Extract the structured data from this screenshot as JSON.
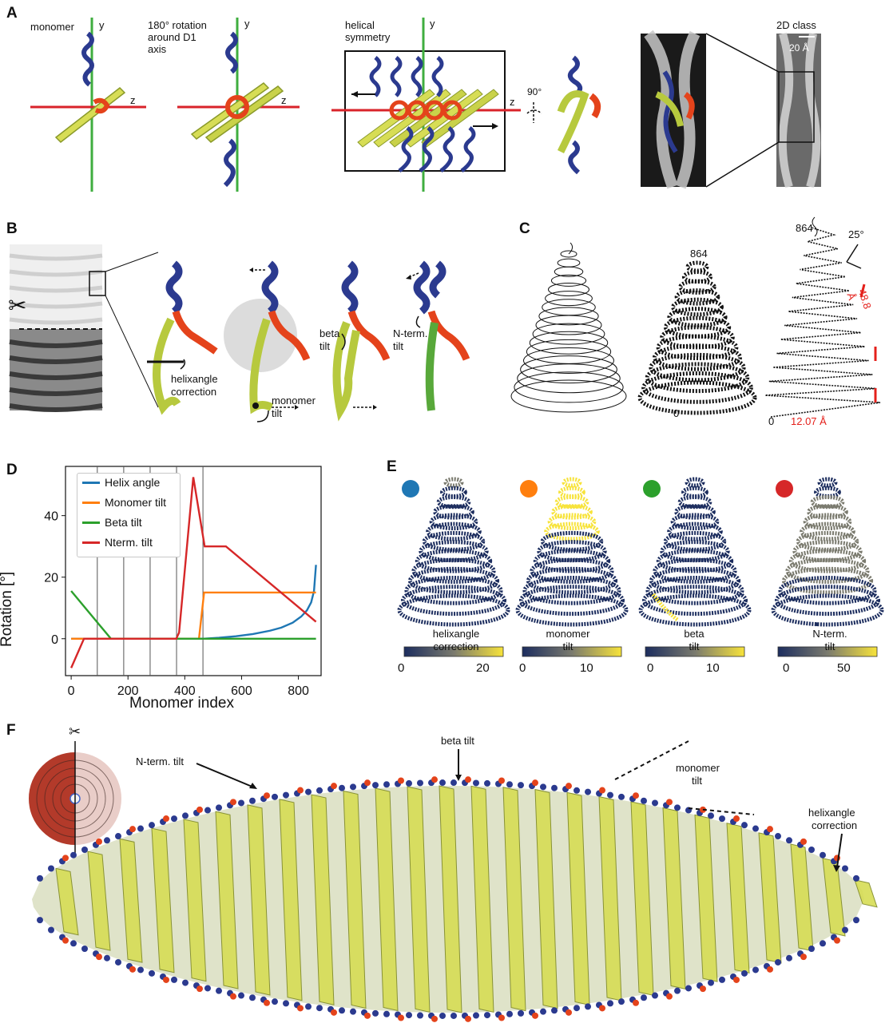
{
  "panel_labels": {
    "a": "A",
    "b": "B",
    "c": "C",
    "d": "D",
    "e": "E",
    "f": "F"
  },
  "panel_a": {
    "monomer": "monomer",
    "y": "y",
    "z": "z",
    "rotation_line1": "180° rotation",
    "rotation_line2": "around D1",
    "rotation_line3": "axis",
    "helical_line1": "helical",
    "helical_line2": "symmetry",
    "deg90": "90°",
    "class2d": "2D class",
    "scale": "20 Å"
  },
  "panel_b": {
    "helixangle_line1": "helixangle",
    "helixangle_line2": "correction",
    "monomer_tilt_line1": "monomer",
    "monomer_tilt_line2": "tilt",
    "beta_tilt_line1": "beta",
    "beta_tilt_line2": "tilt",
    "nterm_tilt_line1": "N-term.",
    "nterm_tilt_line2": "tilt",
    "scissors": "✂"
  },
  "panel_c": {
    "top_index": "864",
    "top_index_2": "864",
    "bottom_index": "0",
    "bottom_index_2": "0",
    "angle": "25°",
    "pitch": "48.8 Å",
    "spacing": "12.07 Å"
  },
  "chart_data": {
    "type": "line",
    "xlabel": "Monomer index",
    "ylabel": "Rotation [°]",
    "xlim": [
      -20,
      880
    ],
    "ylim": [
      -12,
      56
    ],
    "xticks": [
      0,
      200,
      400,
      600,
      800
    ],
    "yticks": [
      0,
      20,
      40
    ],
    "vlines": [
      92,
      185,
      278,
      371,
      464
    ],
    "legend_position": "upper-left",
    "series": [
      {
        "name": "Helix angle",
        "color": "#1f77b4",
        "x": [
          0,
          464,
          520,
          580,
          640,
          700,
          740,
          780,
          810,
          830,
          845,
          855,
          862
        ],
        "y": [
          0,
          0,
          0.3,
          0.8,
          1.5,
          2.6,
          3.6,
          5.2,
          7.2,
          9.2,
          11.8,
          15.5,
          24
        ]
      },
      {
        "name": "Monomer tilt",
        "color": "#ff7f0e",
        "x": [
          0,
          450,
          468,
          862
        ],
        "y": [
          0,
          0,
          15,
          15
        ]
      },
      {
        "name": "Beta tilt",
        "color": "#2ca02c",
        "x": [
          0,
          140,
          862
        ],
        "y": [
          15.5,
          0,
          0
        ]
      },
      {
        "name": "Nterm. tilt",
        "color": "#d62728",
        "x": [
          0,
          45,
          370,
          380,
          430,
          470,
          545,
          862
        ],
        "y": [
          -9.5,
          0,
          0,
          2,
          52.5,
          30,
          30,
          5.5
        ]
      }
    ]
  },
  "panel_e": {
    "dots": [
      "#1f77b4",
      "#ff7f0e",
      "#2ca02c",
      "#d62728"
    ],
    "cones": [
      {
        "label_line1": "helixangle",
        "label_line2": "correction",
        "ticks": [
          "0",
          "20"
        ]
      },
      {
        "label_line1": "monomer",
        "label_line2": "tilt",
        "ticks": [
          "0",
          "10"
        ]
      },
      {
        "label_line1": "beta",
        "label_line2": "tilt",
        "ticks": [
          "0",
          "10"
        ]
      },
      {
        "label_line1": "N-term.",
        "label_line2": "tilt",
        "ticks": [
          "0",
          "50"
        ]
      }
    ],
    "colormap": [
      "#1c2d5e",
      "#7a7a6e",
      "#f7e33b"
    ]
  },
  "panel_f": {
    "nterm": "N-term. tilt",
    "beta": "beta tilt",
    "monomer_line1": "monomer",
    "monomer_line2": "tilt",
    "helix_line1": "helixangle",
    "helix_line2": "correction",
    "scissors": "✂"
  },
  "colors": {
    "ribbon_blue": "#2b3a8f",
    "ribbon_yellow": "#d7dd55",
    "ribbon_red": "#e4431b",
    "axis_green": "#3fae3f",
    "axis_red": "#d9232a"
  }
}
